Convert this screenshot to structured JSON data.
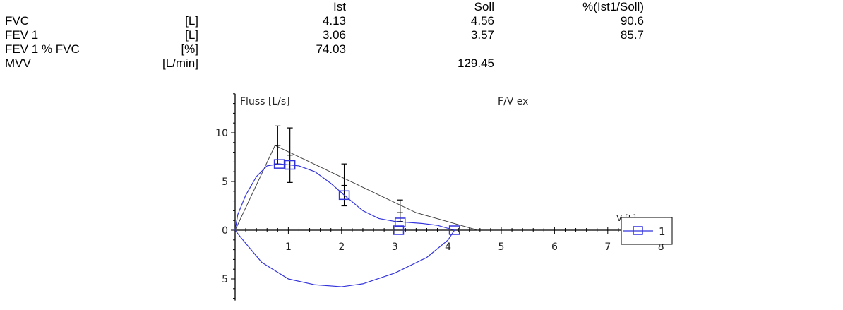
{
  "table": {
    "headers": {
      "ist": "Ist",
      "soll": "Soll",
      "pct": "%(Ist1/Soll)"
    },
    "rows": [
      {
        "name": "FVC",
        "unit": "[L]",
        "ist": "4.13",
        "soll": "4.56",
        "pct": "90.6"
      },
      {
        "name": "FEV 1",
        "unit": "[L]",
        "ist": "3.06",
        "soll": "3.57",
        "pct": "85.7"
      },
      {
        "name": "FEV 1 % FVC",
        "unit": "[%]",
        "ist": "74.03",
        "soll": "",
        "pct": ""
      },
      {
        "name": "MVV",
        "unit": "[L/min]",
        "ist": "",
        "soll": "129.45",
        "pct": ""
      }
    ]
  },
  "chart_data": {
    "type": "line",
    "title": "F/V ex",
    "ylabel": "Fluss [L/s]",
    "xlabel": "V [L]",
    "xlim": [
      0,
      8
    ],
    "ylim": [
      -7,
      14
    ],
    "x_ticks": [
      "1",
      "2",
      "3",
      "4",
      "5",
      "6",
      "7",
      "8"
    ],
    "y_ticks": [
      {
        "value": 10,
        "label": "10"
      },
      {
        "value": 5,
        "label": "5"
      },
      {
        "value": 0,
        "label": "0"
      },
      {
        "value": -5,
        "label": "5"
      }
    ],
    "grid": false,
    "legend_position": "right",
    "colors": {
      "measured": "#3333dd",
      "predicted": "#444444"
    },
    "predicted_line": [
      [
        0,
        0
      ],
      [
        0.75,
        8.7
      ],
      [
        3.4,
        1.8
      ],
      [
        4.56,
        0
      ]
    ],
    "error_bars": [
      {
        "x": 0.8,
        "low": 6.8,
        "mid": 8.7,
        "high": 10.7
      },
      {
        "x": 1.03,
        "low": 4.9,
        "mid": 7.7,
        "high": 10.5
      },
      {
        "x": 2.05,
        "low": 2.5,
        "mid": 4.6,
        "high": 6.8
      },
      {
        "x": 3.1,
        "low": 0.9,
        "mid": 1.8,
        "high": 3.1
      }
    ],
    "series": [
      {
        "name": "1",
        "expiration": [
          [
            0,
            0
          ],
          [
            0.05,
            1.6
          ],
          [
            0.2,
            3.6
          ],
          [
            0.4,
            5.5
          ],
          [
            0.6,
            6.6
          ],
          [
            0.83,
            6.8
          ],
          [
            1.2,
            6.6
          ],
          [
            1.5,
            6.0
          ],
          [
            1.8,
            4.8
          ],
          [
            2.05,
            3.6
          ],
          [
            2.4,
            2.0
          ],
          [
            2.7,
            1.2
          ],
          [
            3.0,
            0.9
          ],
          [
            3.5,
            0.7
          ],
          [
            3.8,
            0.5
          ],
          [
            4.12,
            0
          ]
        ],
        "inspiration": [
          [
            4.12,
            0
          ],
          [
            4.0,
            -1.0
          ],
          [
            3.6,
            -2.8
          ],
          [
            3.0,
            -4.4
          ],
          [
            2.4,
            -5.5
          ],
          [
            2.0,
            -5.8
          ],
          [
            1.5,
            -5.6
          ],
          [
            1.0,
            -5.0
          ],
          [
            0.5,
            -3.3
          ],
          [
            0.1,
            -0.7
          ],
          [
            0,
            0
          ]
        ],
        "markers": [
          [
            0.83,
            6.8
          ],
          [
            1.03,
            6.7
          ],
          [
            2.05,
            3.6
          ],
          [
            3.1,
            0.8
          ],
          [
            3.07,
            0
          ],
          [
            4.12,
            0
          ]
        ]
      }
    ]
  }
}
